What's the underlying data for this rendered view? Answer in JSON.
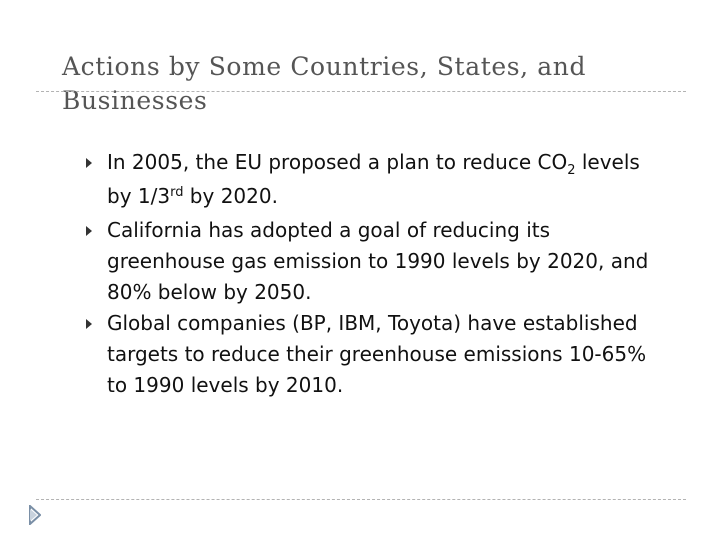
{
  "slide": {
    "title": {
      "line1": "Actions by Some Countries, States, and",
      "line2": "Businesses"
    },
    "bullets": [
      {
        "line1_a": "In 2005, the EU proposed a plan to reduce CO",
        "line1_sub": "2",
        "line1_b": " levels",
        "line2_a": "by 1/3",
        "line2_sup": "rd",
        "line2_b": " by 2020."
      },
      {
        "line1": "California has adopted a goal of reducing its",
        "line2": "greenhouse gas emission to 1990 levels by 2020, and",
        "line3": "80% below by 2050."
      },
      {
        "line1": "Global companies  (BP, IBM, Toyota) have established",
        "line2": "targets to reduce their greenhouse emissions 10-65%",
        "line3": "to 1990 levels by 2010."
      }
    ],
    "colors": {
      "title": "#555555",
      "text": "#111111",
      "rule": "#b3b3b3",
      "nav_icon": "#7a8fa6"
    },
    "icons": {
      "bullet": "triangle-right-icon",
      "nav": "slide-nav-arrow-icon"
    }
  }
}
